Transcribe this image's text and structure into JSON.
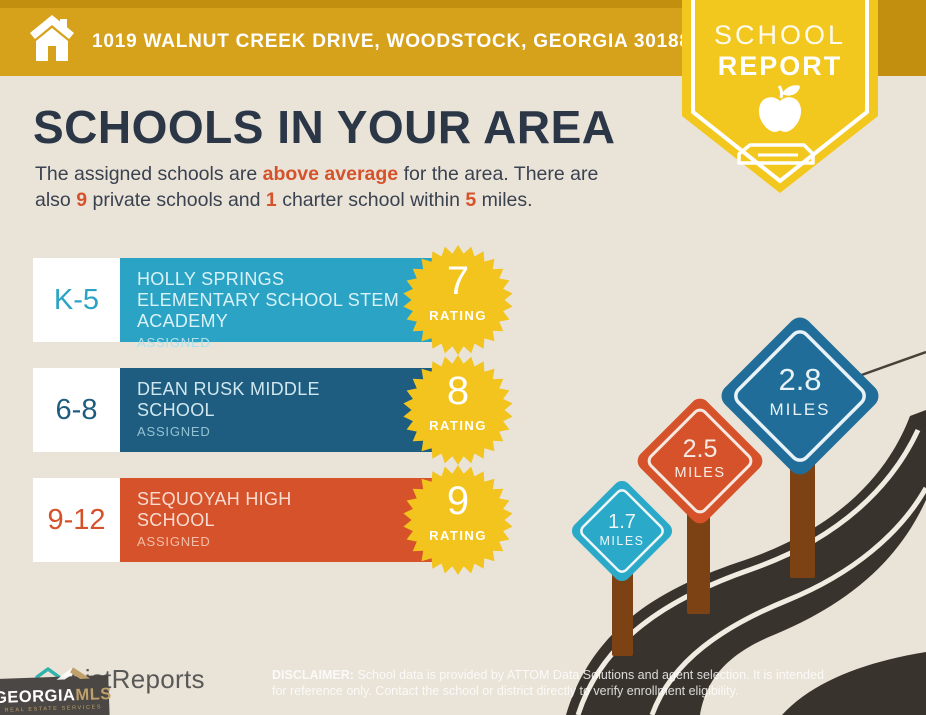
{
  "header": {
    "address": "1019 WALNUT CREEK DRIVE, WOODSTOCK, GEORGIA 30188"
  },
  "badge": {
    "line1": "SCHOOL",
    "line2": "REPORT"
  },
  "intro": {
    "title": "SCHOOLS IN YOUR AREA",
    "segments": [
      {
        "text": "The assigned schools are ",
        "highlight": false
      },
      {
        "text": "above average",
        "highlight": true
      },
      {
        "text": " for the area. There are also ",
        "highlight": false
      },
      {
        "text": "9",
        "highlight": true
      },
      {
        "text": " private schools and ",
        "highlight": false
      },
      {
        "text": "1",
        "highlight": true
      },
      {
        "text": " charter school within ",
        "highlight": false
      },
      {
        "text": "5",
        "highlight": true
      },
      {
        "text": " miles.",
        "highlight": false
      }
    ]
  },
  "schools": [
    {
      "grades": "K-5",
      "name": "HOLLY SPRINGS ELEMENTARY SCHOOL STEM ACADEMY",
      "status": "ASSIGNED",
      "rating": "7",
      "rating_label": "RATING",
      "color": "#2ba3c4"
    },
    {
      "grades": "6-8",
      "name": "DEAN RUSK MIDDLE SCHOOL",
      "status": "ASSIGNED",
      "rating": "8",
      "rating_label": "RATING",
      "color": "#1e5d7f"
    },
    {
      "grades": "9-12",
      "name": "SEQUOYAH HIGH SCHOOL",
      "status": "ASSIGNED",
      "rating": "9",
      "rating_label": "RATING",
      "color": "#d5522b"
    }
  ],
  "distance_signs": [
    {
      "distance": "1.7",
      "unit": "MILES",
      "color": "#2aa9c8"
    },
    {
      "distance": "2.5",
      "unit": "MILES",
      "color": "#d5522b"
    },
    {
      "distance": "2.8",
      "unit": "MILES",
      "color": "#1f6d98"
    }
  ],
  "footer": {
    "brand": "ListReports",
    "mls_name": "GEORGIA",
    "mls_suffix": "MLS",
    "mls_tagline": "REAL ESTATE SERVICES",
    "disclaimer_label": "DISCLAIMER:",
    "disclaimer_text": "School data is provided by ATTOM Data Solutions and agent selection. It is intended for reference only. Contact the school or district directly to verify enrollment eligibility."
  },
  "colors": {
    "header_gold": "#d7a21b",
    "header_gold_dark": "#c28f0e",
    "badge_yellow": "#f2c71e",
    "background_beige": "#eae3d8",
    "heading_navy": "#2b3647",
    "accent_orange": "#d5522b",
    "elementary_teal": "#2ba3c4",
    "middle_blue": "#1e5d7f",
    "rating_burst_yellow": "#f2c41d",
    "road_dark": "#38332d",
    "post_brown": "#7c4213"
  }
}
